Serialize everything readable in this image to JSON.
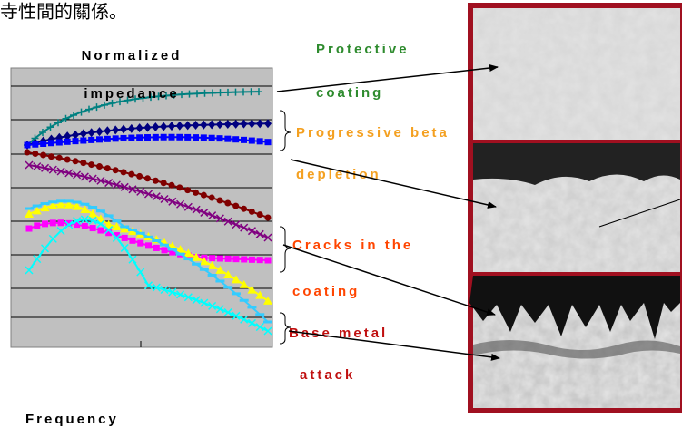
{
  "header": {
    "text": "寺性間的關係。"
  },
  "chart": {
    "title_lines": [
      "Normalized",
      "impedance"
    ],
    "x_label": "Frequency"
  },
  "annotations": [
    {
      "lines": [
        "Protective",
        "coating"
      ]
    },
    {
      "lines": [
        "Progressive beta",
        "depletion"
      ]
    },
    {
      "lines": [
        "Cracks in the",
        "coating"
      ]
    },
    {
      "lines": [
        "Base metal",
        "attack"
      ]
    }
  ]
}
